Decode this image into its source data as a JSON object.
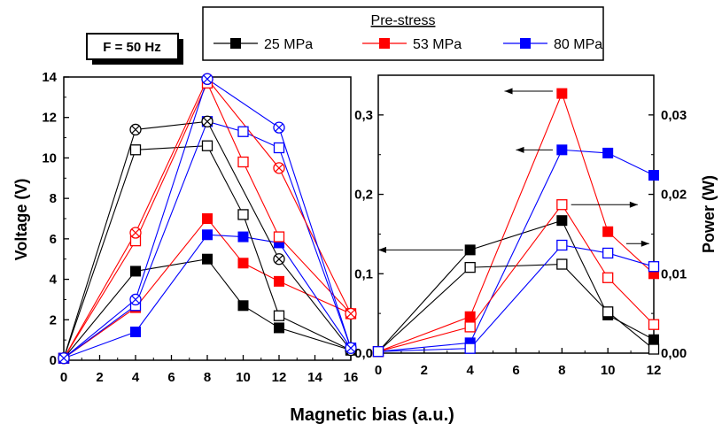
{
  "freq_label": "F = 50 Hz",
  "legend": {
    "title": "Pre-stress",
    "entries": [
      {
        "label": "25 MPa",
        "color": "#000000"
      },
      {
        "label": "53 MPa",
        "color": "#ff0000"
      },
      {
        "label": "80 MPa",
        "color": "#0000ff"
      }
    ]
  },
  "shared_xlabel": "Magnetic bias (a.u.)",
  "chart_data": [
    {
      "type": "line",
      "panel": "left",
      "ylabel": "Voltage (V)",
      "xlabel": "",
      "xlim": [
        0,
        16
      ],
      "ylim": [
        0,
        14
      ],
      "xticks": [
        "0",
        "2",
        "4",
        "6",
        "8",
        "10",
        "12",
        "14",
        "16"
      ],
      "yticks": [
        "0",
        "2",
        "4",
        "6",
        "8",
        "10",
        "12",
        "14"
      ],
      "series": [
        {
          "name": "25 MPa",
          "color": "#000000",
          "marker": "filled-square",
          "points": [
            [
              0,
              0.1
            ],
            [
              4,
              4.4
            ],
            [
              8,
              5.0
            ],
            [
              10,
              2.7
            ],
            [
              12,
              1.6
            ],
            [
              16,
              0.5
            ]
          ]
        },
        {
          "name": "53 MPa",
          "color": "#ff0000",
          "marker": "filled-square",
          "points": [
            [
              0,
              0.1
            ],
            [
              4,
              2.6
            ],
            [
              8,
              7.0
            ],
            [
              10,
              4.8
            ],
            [
              12,
              3.9
            ],
            [
              16,
              2.3
            ]
          ]
        },
        {
          "name": "80 MPa",
          "color": "#0000ff",
          "marker": "filled-square",
          "points": [
            [
              0,
              0.1
            ],
            [
              4,
              1.4
            ],
            [
              8,
              6.2
            ],
            [
              10,
              6.1
            ],
            [
              12,
              5.8
            ],
            [
              16,
              0.6
            ]
          ]
        },
        {
          "name": "25 MPa",
          "color": "#000000",
          "marker": "open-square",
          "points": [
            [
              0,
              0.1
            ],
            [
              4,
              10.4
            ],
            [
              8,
              10.6
            ],
            [
              10,
              7.2
            ],
            [
              12,
              2.2
            ],
            [
              16,
              0.5
            ]
          ]
        },
        {
          "name": "53 MPa",
          "color": "#ff0000",
          "marker": "open-square",
          "points": [
            [
              0,
              0.1
            ],
            [
              4,
              5.9
            ],
            [
              8,
              13.7
            ],
            [
              10,
              9.8
            ],
            [
              12,
              6.1
            ],
            [
              16,
              2.3
            ]
          ]
        },
        {
          "name": "80 MPa",
          "color": "#0000ff",
          "marker": "open-square",
          "points": [
            [
              0,
              0.1
            ],
            [
              4,
              2.7
            ],
            [
              8,
              11.8
            ],
            [
              10,
              11.3
            ],
            [
              12,
              10.5
            ],
            [
              16,
              0.6
            ]
          ]
        },
        {
          "name": "25 MPa",
          "color": "#000000",
          "marker": "circle-x",
          "points": [
            [
              0,
              0.1
            ],
            [
              4,
              11.4
            ],
            [
              8,
              11.8
            ],
            [
              12,
              5.0
            ],
            [
              16,
              0.5
            ]
          ]
        },
        {
          "name": "53 MPa",
          "color": "#ff0000",
          "marker": "circle-x",
          "points": [
            [
              0,
              0.1
            ],
            [
              4,
              6.3
            ],
            [
              8,
              13.9
            ],
            [
              12,
              9.5
            ],
            [
              16,
              2.3
            ]
          ]
        },
        {
          "name": "80 MPa",
          "color": "#0000ff",
          "marker": "circle-x",
          "points": [
            [
              0,
              0.1
            ],
            [
              4,
              3.0
            ],
            [
              8,
              13.9
            ],
            [
              12,
              11.5
            ],
            [
              16,
              0.6
            ]
          ]
        }
      ]
    },
    {
      "type": "line",
      "panel": "right",
      "ylabel": "",
      "y2label": "Power (W)",
      "xlabel": "",
      "xlim": [
        0,
        12
      ],
      "ylim": [
        0,
        0.35
      ],
      "y2lim": [
        0,
        0.035
      ],
      "xticks": [
        "0",
        "2",
        "4",
        "6",
        "8",
        "10",
        "12"
      ],
      "yticks": [
        "0,0",
        "0,1",
        "0,2",
        "0,3"
      ],
      "y2ticks": [
        "0,00",
        "0,01",
        "0,02",
        "0,03"
      ],
      "series": [
        {
          "name": "25 MPa",
          "color": "#000000",
          "marker": "filled-square",
          "axis": "left",
          "points": [
            [
              0,
              0.002
            ],
            [
              4,
              0.13
            ],
            [
              8,
              0.167
            ],
            [
              10,
              0.048
            ],
            [
              12,
              0.017
            ]
          ]
        },
        {
          "name": "53 MPa",
          "color": "#ff0000",
          "marker": "filled-square",
          "axis": "left",
          "points": [
            [
              0,
              0.002
            ],
            [
              4,
              0.046
            ],
            [
              8,
              0.327
            ],
            [
              10,
              0.153
            ],
            [
              12,
              0.1
            ]
          ]
        },
        {
          "name": "80 MPa",
          "color": "#0000ff",
          "marker": "filled-square",
          "axis": "left",
          "points": [
            [
              0,
              0.002
            ],
            [
              4,
              0.013
            ],
            [
              8,
              0.256
            ],
            [
              10,
              0.252
            ],
            [
              12,
              0.224
            ]
          ]
        },
        {
          "name": "25 MPa",
          "color": "#000000",
          "marker": "open-square",
          "axis": "right",
          "points": [
            [
              0,
              0.0002
            ],
            [
              4,
              0.0108
            ],
            [
              8,
              0.0112
            ],
            [
              10,
              0.0052
            ],
            [
              12,
              0.0005
            ]
          ]
        },
        {
          "name": "53 MPa",
          "color": "#ff0000",
          "marker": "open-square",
          "axis": "right",
          "points": [
            [
              0,
              0.0002
            ],
            [
              4,
              0.0033
            ],
            [
              8,
              0.0187
            ],
            [
              10,
              0.0095
            ],
            [
              12,
              0.0036
            ]
          ]
        },
        {
          "name": "80 MPa",
          "color": "#0000ff",
          "marker": "open-square",
          "axis": "right",
          "points": [
            [
              0,
              0.0002
            ],
            [
              4,
              0.0006
            ],
            [
              8,
              0.0136
            ],
            [
              10,
              0.0126
            ],
            [
              12,
              0.0109
            ]
          ]
        }
      ],
      "annotations": [
        {
          "type": "arrow",
          "direction": "left",
          "y": 0.13
        },
        {
          "type": "arrow",
          "direction": "left",
          "y": 0.33
        },
        {
          "type": "arrow",
          "direction": "left",
          "y": 0.256
        },
        {
          "type": "arrow",
          "direction": "right",
          "y": 0.0187
        },
        {
          "type": "arrow",
          "direction": "right",
          "y": 0.0138
        }
      ]
    }
  ]
}
